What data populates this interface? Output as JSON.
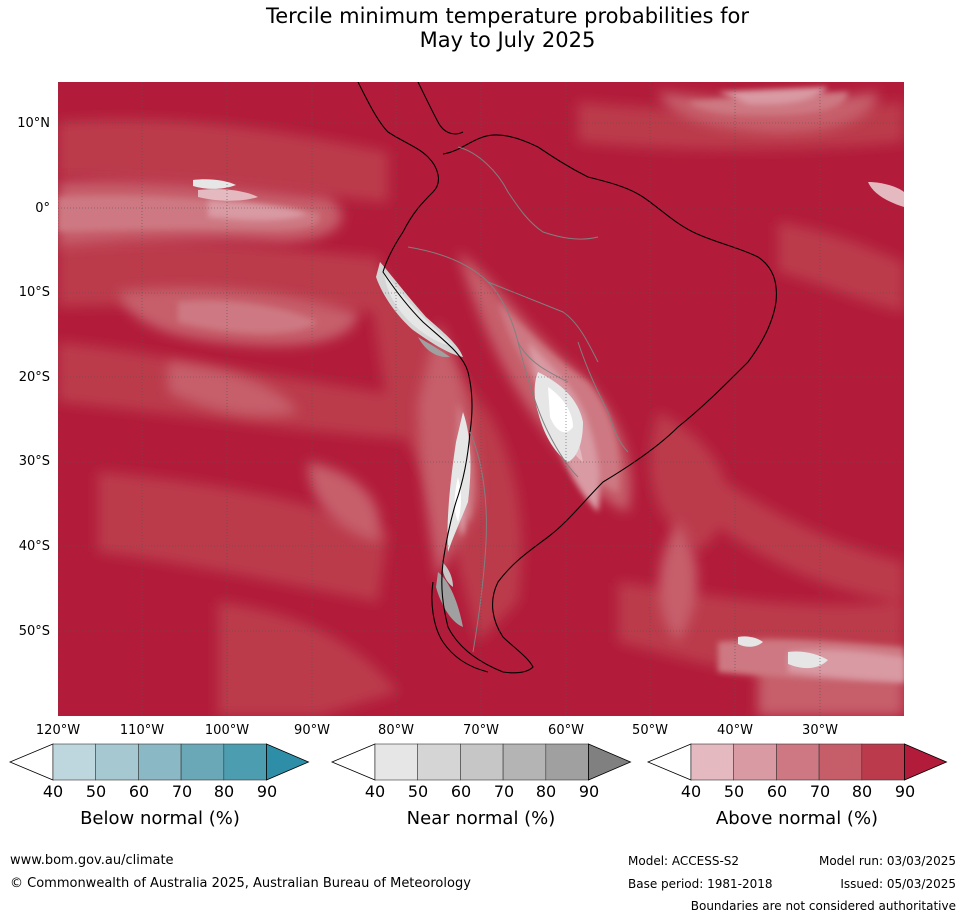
{
  "title_line1": "Tercile minimum temperature probabilities for",
  "title_line2": "May to July 2025",
  "lat_labels": [
    "10°N",
    "0°",
    "10°S",
    "20°S",
    "30°S",
    "40°S",
    "50°S"
  ],
  "lon_labels": [
    "120°W",
    "110°W",
    "100°W",
    "90°W",
    "80°W",
    "70°W",
    "60°W",
    "50°W",
    "40°W",
    "30°W"
  ],
  "colorbars": [
    {
      "label": "Below normal (%)",
      "ticks": [
        "40",
        "50",
        "60",
        "70",
        "80",
        "90"
      ],
      "colors": [
        "#ffffff",
        "#bed7de",
        "#a6c8d0",
        "#8ab8c4",
        "#6aa8b8",
        "#4c9db0",
        "#2e8ea8"
      ]
    },
    {
      "label": "Near normal (%)",
      "ticks": [
        "40",
        "50",
        "60",
        "70",
        "80",
        "90"
      ],
      "colors": [
        "#ffffff",
        "#e6e6e6",
        "#d5d5d5",
        "#c6c6c6",
        "#b4b4b4",
        "#a0a0a0",
        "#808080"
      ]
    },
    {
      "label": "Above normal (%)",
      "ticks": [
        "40",
        "50",
        "60",
        "70",
        "80",
        "90"
      ],
      "colors": [
        "#ffffff",
        "#e4b9bf",
        "#d99aa3",
        "#cd7882",
        "#c65e6a",
        "#bb3a4c",
        "#b21c3a"
      ]
    }
  ],
  "footer": {
    "website": "www.bom.gov.au/climate",
    "copyright": "© Commonwealth of Australia 2025, Australian Bureau of Meteorology",
    "model": "Model: ACCESS-S2",
    "model_run": "Model run: 03/03/2025",
    "base_period": "Base period: 1981-2018",
    "issued": "Issued: 05/03/2025",
    "disclaimer": "Boundaries are not considered authoritative"
  }
}
